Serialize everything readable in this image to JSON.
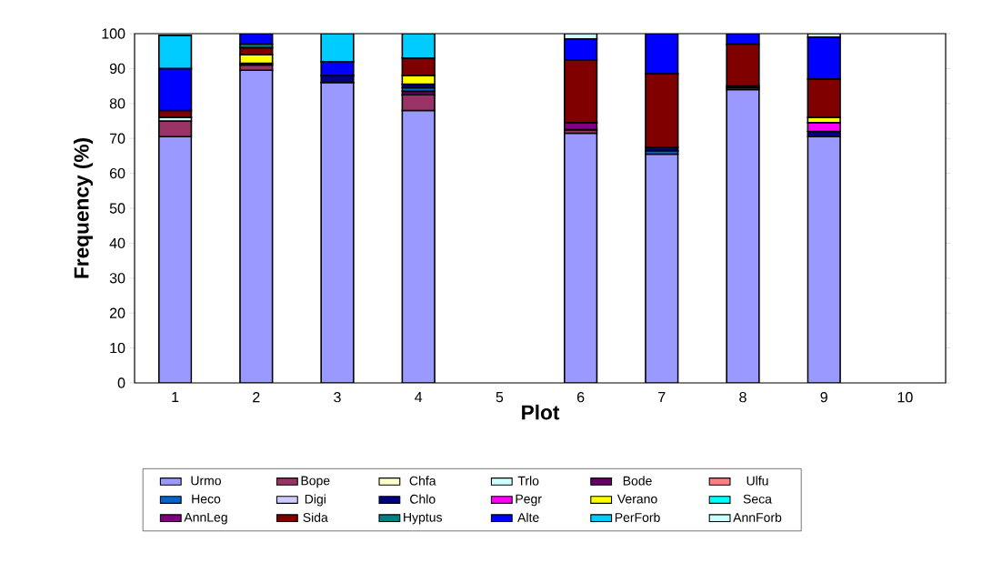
{
  "chart_data": {
    "type": "bar",
    "stacked": true,
    "xlabel": "Plot",
    "ylabel": "Frequency (%)",
    "categories": [
      "1",
      "2",
      "3",
      "4",
      "5",
      "6",
      "7",
      "8",
      "9",
      "10"
    ],
    "ylim": [
      0,
      100
    ],
    "yticks": [
      0,
      10,
      20,
      30,
      40,
      50,
      60,
      70,
      80,
      90,
      100
    ],
    "legend": "bottom",
    "grid": false,
    "series": [
      {
        "name": "Urmo",
        "color": "#9999ff",
        "values": [
          70.5,
          89.5,
          86,
          78,
          null,
          71.5,
          65.5,
          84,
          70.5,
          null
        ]
      },
      {
        "name": "Bope",
        "color": "#993366",
        "values": [
          4.5,
          1.5,
          null,
          4.5,
          null,
          1,
          null,
          0.5,
          null,
          null
        ]
      },
      {
        "name": "Chfa",
        "color": "#ffffcc",
        "values": [
          null,
          null,
          null,
          null,
          null,
          null,
          null,
          null,
          null,
          null
        ]
      },
      {
        "name": "Trlo",
        "color": "#ccffff",
        "values": [
          1,
          null,
          null,
          null,
          null,
          null,
          null,
          null,
          null,
          null
        ]
      },
      {
        "name": "Bode",
        "color": "#660066",
        "values": [
          null,
          null,
          null,
          1,
          null,
          null,
          null,
          null,
          null,
          null
        ]
      },
      {
        "name": "Ulfu",
        "color": "#ff8080",
        "values": [
          null,
          null,
          null,
          null,
          null,
          null,
          null,
          null,
          null,
          null
        ]
      },
      {
        "name": "Heco",
        "color": "#0066cc",
        "values": [
          null,
          null,
          null,
          1,
          null,
          null,
          1,
          null,
          null,
          null
        ]
      },
      {
        "name": "Digi",
        "color": "#ccccff",
        "values": [
          null,
          null,
          null,
          null,
          null,
          null,
          null,
          null,
          null,
          null
        ]
      },
      {
        "name": "Chlo",
        "color": "#000080",
        "values": [
          null,
          0.5,
          2,
          1,
          null,
          null,
          1,
          null,
          1.5,
          null
        ]
      },
      {
        "name": "Pegr",
        "color": "#ff00ff",
        "values": [
          null,
          null,
          null,
          null,
          null,
          null,
          null,
          null,
          2.5,
          null
        ]
      },
      {
        "name": "Verano",
        "color": "#ffff00",
        "values": [
          null,
          2.5,
          null,
          2.5,
          null,
          null,
          null,
          null,
          1.5,
          null
        ]
      },
      {
        "name": "Seca",
        "color": "#00ffff",
        "values": [
          null,
          null,
          null,
          null,
          null,
          null,
          null,
          null,
          null,
          null
        ]
      },
      {
        "name": "AnnLeg",
        "color": "#800080",
        "values": [
          null,
          null,
          null,
          null,
          null,
          2,
          null,
          0.5,
          null,
          null
        ]
      },
      {
        "name": "Sida",
        "color": "#800000",
        "values": [
          2,
          2,
          null,
          5,
          null,
          18,
          21,
          12,
          11,
          null
        ]
      },
      {
        "name": "Hyptus",
        "color": "#008080",
        "values": [
          null,
          1,
          null,
          null,
          null,
          null,
          null,
          null,
          null,
          null
        ]
      },
      {
        "name": "Alte",
        "color": "#0000ff",
        "values": [
          12,
          3,
          4,
          null,
          null,
          6,
          11.5,
          3,
          12,
          null
        ]
      },
      {
        "name": "PerForb",
        "color": "#00ccff",
        "values": [
          9.5,
          null,
          8,
          7,
          null,
          null,
          null,
          null,
          null,
          null
        ]
      },
      {
        "name": "AnnForb",
        "color": "#ccffff",
        "values": [
          null,
          null,
          null,
          null,
          null,
          1.5,
          null,
          null,
          1,
          null
        ]
      }
    ]
  }
}
